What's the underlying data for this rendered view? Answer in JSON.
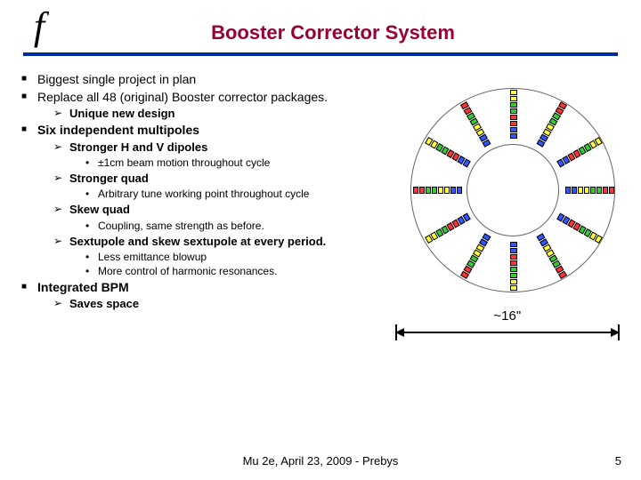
{
  "header": {
    "logo": "f",
    "title": "Booster Corrector System",
    "rule_color": "#002b9a",
    "title_color": "#990033"
  },
  "bullets": [
    {
      "text": "Biggest single project in plan"
    },
    {
      "text": "Replace all 48 (original) Booster corrector packages.",
      "sub": [
        {
          "text": "Unique new design"
        }
      ]
    },
    {
      "text": "Six independent multipoles",
      "bold": true,
      "sub": [
        {
          "text": "Stronger H and V dipoles",
          "dots": [
            "±1cm beam motion throughout cycle"
          ]
        },
        {
          "text": "Stronger quad",
          "dots": [
            "Arbitrary tune working point throughout cycle"
          ]
        },
        {
          "text": "Skew quad",
          "dots": [
            "Coupling, same strength as before."
          ]
        },
        {
          "text": "Sextupole and skew sextupole at every period.",
          "dots": [
            "Less emittance blowup",
            "More control of harmonic resonances."
          ]
        }
      ]
    },
    {
      "text": "Integrated BPM",
      "bold": true,
      "sub": [
        {
          "text": "Saves space"
        }
      ]
    }
  ],
  "diagram": {
    "segments": 12,
    "seg_colors": [
      [
        "#ffff33",
        "#ffff33",
        "#33cc33",
        "#33cc33",
        "#ff3333",
        "#ff3333",
        "#3355ff",
        "#3355ff"
      ],
      [
        "#ff3333",
        "#ff3333",
        "#33cc33",
        "#33cc33",
        "#ffff33",
        "#ffff33",
        "#3355ff",
        "#3355ff"
      ]
    ],
    "scale_label": "~16\""
  },
  "footer": {
    "text": "Mu 2e, April 23, 2009 - Prebys",
    "page": "5"
  }
}
